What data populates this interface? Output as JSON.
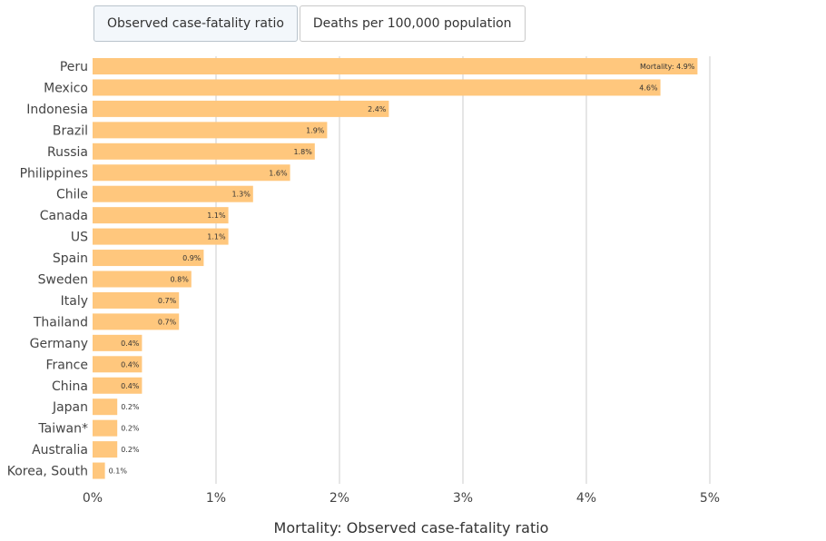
{
  "tabs": [
    {
      "label": "Observed case-fatality ratio",
      "active": true
    },
    {
      "label": "Deaths per 100,000 population",
      "active": false
    }
  ],
  "colors": {
    "bar": "#ffc77d",
    "grid": "#cccccc",
    "text": "#444444"
  },
  "chart_data": {
    "type": "bar",
    "orientation": "horizontal",
    "categories": [
      "Peru",
      "Mexico",
      "Indonesia",
      "Brazil",
      "Russia",
      "Philippines",
      "Chile",
      "Canada",
      "US",
      "Spain",
      "Sweden",
      "Italy",
      "Thailand",
      "Germany",
      "France",
      "China",
      "Japan",
      "Taiwan*",
      "Australia",
      "Korea, South"
    ],
    "values": [
      4.9,
      4.6,
      2.4,
      1.9,
      1.8,
      1.6,
      1.3,
      1.1,
      1.1,
      0.9,
      0.8,
      0.7,
      0.7,
      0.4,
      0.4,
      0.4,
      0.2,
      0.2,
      0.2,
      0.1
    ],
    "data_labels": [
      "Mortality: 4.9%",
      "4.6%",
      "2.4%",
      "1.9%",
      "1.8%",
      "1.6%",
      "1.3%",
      "1.1%",
      "1.1%",
      "0.9%",
      "0.8%",
      "0.7%",
      "0.7%",
      "0.4%",
      "0.4%",
      "0.4%",
      "0.2%",
      "0.2%",
      "0.2%",
      "0.1%"
    ],
    "xlabel": "Mortality: Observed case-fatality ratio",
    "xlim": [
      0,
      5
    ],
    "x_ticks": [
      0,
      1,
      2,
      3,
      4,
      5
    ],
    "x_tick_labels": [
      "0%",
      "1%",
      "2%",
      "3%",
      "4%",
      "5%"
    ],
    "grid": true,
    "legend": "none"
  }
}
